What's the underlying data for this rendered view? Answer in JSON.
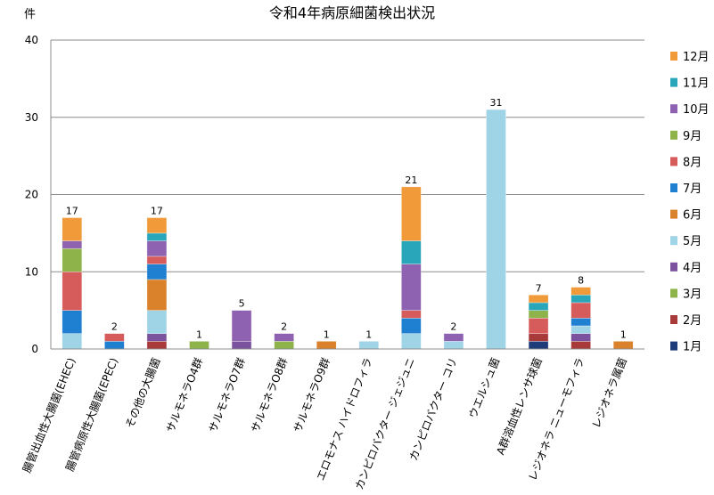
{
  "chart_data": {
    "type": "bar",
    "stacked": true,
    "title": "令和4年病原細菌検出状況",
    "ylabel": "件",
    "ylim": [
      0,
      40
    ],
    "yticks": [
      0,
      10,
      20,
      30,
      40
    ],
    "grid": true,
    "legend_position": "right",
    "categories": [
      "腸管出血性大腸菌(EHEC)",
      "腸管病原性大腸菌(EPEC)",
      "その他の大腸菌",
      "サルモネラO4群",
      "サルモネラO7群",
      "サルモネラO8群",
      "サルモネラO9群",
      "エロモナス ハイドロフィラ",
      "カンピロバクター ジェジュニ",
      "カンピロバクター コリ",
      "ウエルシュ菌",
      "A群溶血性レンサ球菌",
      "レジオネラ ニューモフィラ",
      "レジオネラ属菌"
    ],
    "totals": [
      17,
      2,
      17,
      1,
      5,
      2,
      1,
      1,
      21,
      2,
      31,
      7,
      8,
      1
    ],
    "series": [
      {
        "name": "1月",
        "color": "#1f3c7a",
        "values": [
          0,
          0,
          0,
          0,
          0,
          0,
          0,
          0,
          0,
          0,
          0,
          1,
          0,
          0
        ]
      },
      {
        "name": "2月",
        "color": "#a83a3a",
        "values": [
          0,
          0,
          1,
          0,
          0,
          0,
          0,
          0,
          0,
          0,
          0,
          1,
          1,
          0
        ]
      },
      {
        "name": "3月",
        "color": "#8db34a",
        "values": [
          0,
          0,
          0,
          0,
          0,
          0,
          0,
          0,
          0,
          0,
          0,
          0,
          0,
          0
        ]
      },
      {
        "name": "4月",
        "color": "#7a529e",
        "values": [
          0,
          0,
          1,
          0,
          1,
          0,
          0,
          0,
          0,
          0,
          0,
          0,
          1,
          0
        ]
      },
      {
        "name": "5月",
        "color": "#9fd3e6",
        "values": [
          2,
          0,
          3,
          0,
          0,
          0,
          0,
          1,
          2,
          1,
          31,
          0,
          1,
          0
        ]
      },
      {
        "name": "6月",
        "color": "#d9822b",
        "values": [
          0,
          0,
          4,
          0,
          0,
          0,
          1,
          0,
          0,
          0,
          0,
          0,
          0,
          1
        ]
      },
      {
        "name": "7月",
        "color": "#1f7fd1",
        "values": [
          3,
          1,
          2,
          0,
          0,
          0,
          0,
          0,
          2,
          0,
          0,
          0,
          1,
          0
        ]
      },
      {
        "name": "8月",
        "color": "#d65c5c",
        "values": [
          5,
          1,
          1,
          0,
          0,
          0,
          0,
          0,
          1,
          0,
          0,
          2,
          2,
          0
        ]
      },
      {
        "name": "9月",
        "color": "#8db34a",
        "values": [
          3,
          0,
          0,
          1,
          0,
          1,
          0,
          0,
          0,
          0,
          0,
          1,
          0,
          0
        ]
      },
      {
        "name": "10月",
        "color": "#8e62b0",
        "values": [
          1,
          0,
          2,
          0,
          4,
          1,
          0,
          0,
          6,
          1,
          0,
          0,
          0,
          0
        ]
      },
      {
        "name": "11月",
        "color": "#2aa6bb",
        "values": [
          0,
          0,
          1,
          0,
          0,
          0,
          0,
          0,
          3,
          0,
          0,
          1,
          1,
          0
        ]
      },
      {
        "name": "12月",
        "color": "#f09a3a",
        "values": [
          3,
          0,
          2,
          0,
          0,
          0,
          0,
          0,
          7,
          0,
          0,
          1,
          1,
          0
        ]
      }
    ]
  }
}
